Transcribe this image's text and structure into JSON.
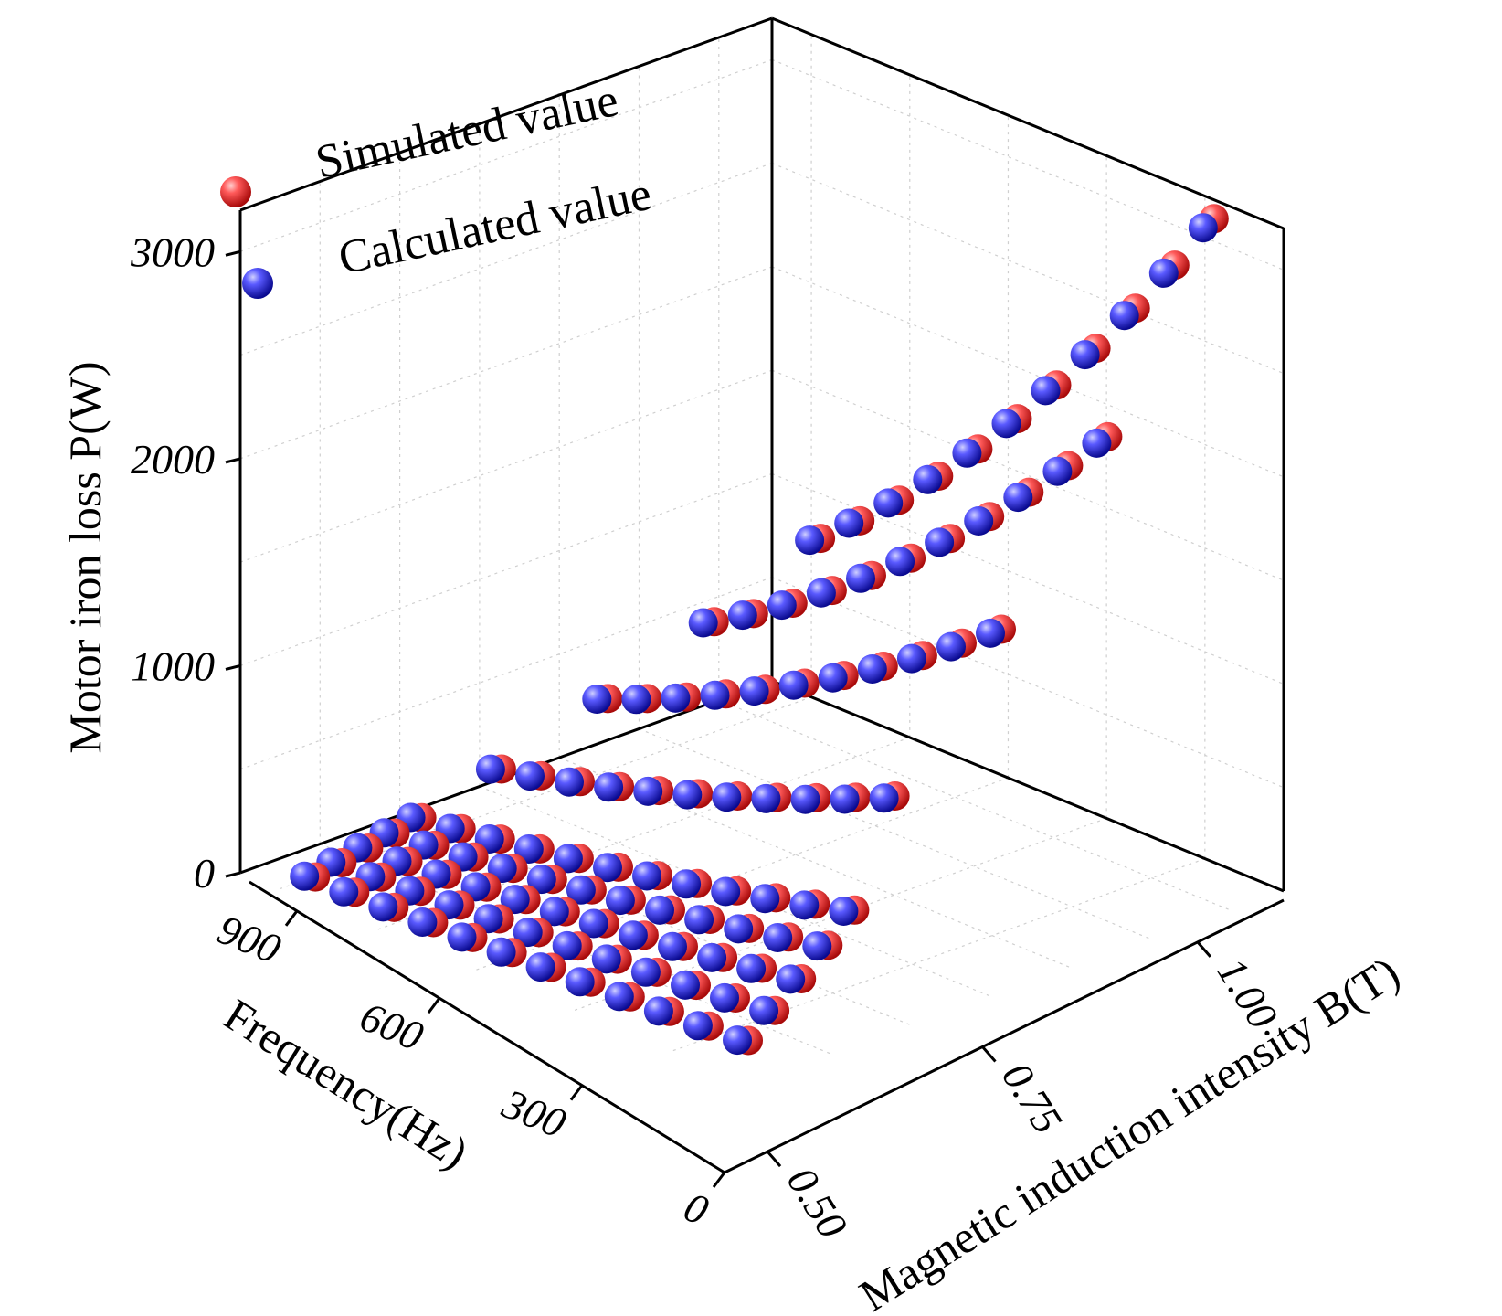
{
  "chart_data": {
    "type": "scatter3d",
    "title": "",
    "axes": {
      "z": {
        "label": "Motor iron loss P(W)",
        "range": [
          0,
          3200
        ],
        "ticks": [
          "0",
          "1000",
          "2000",
          "3000"
        ],
        "tick_values": [
          0,
          1000,
          2000,
          3000
        ]
      },
      "f": {
        "label": "Frequency(Hz)",
        "range": [
          0,
          1000
        ],
        "ticks": [
          "0",
          "300",
          "600",
          "900"
        ],
        "tick_values": [
          0,
          300,
          600,
          900
        ]
      },
      "b": {
        "label": "Magnetic induction intensity B(T)",
        "range": [
          0.45,
          1.1
        ],
        "ticks": [
          "0.50",
          "0.75",
          "1.00"
        ],
        "tick_values": [
          0.5,
          0.75,
          1.0
        ]
      }
    },
    "grid": true,
    "legend": {
      "position": "top-left"
    },
    "series": [
      {
        "name": "Simulated value",
        "color": "#e53030"
      },
      {
        "name": "Calculated value",
        "color": "#3030e0"
      }
    ],
    "model": {
      "description_points": "grid of B (T) x frequency (Hz) samples",
      "b_values": [
        0.5,
        0.55,
        0.6,
        0.65,
        0.7,
        0.75,
        0.8,
        0.85,
        0.9,
        0.95,
        1.0,
        1.05
      ],
      "dense_f_values": [
        50,
        100,
        150,
        200,
        250
      ],
      "sparse_f_values": [
        400,
        600,
        800,
        1000
      ]
    },
    "points": {
      "simulated_at_1000Hz": [
        {
          "b": 0.5,
          "p": 370
        },
        {
          "b": 0.55,
          "p": 620
        },
        {
          "b": 0.6,
          "p": 900
        },
        {
          "b": 0.65,
          "p": 1200
        },
        {
          "b": 0.7,
          "p": 1500
        },
        {
          "b": 0.75,
          "p": 1800
        },
        {
          "b": 0.8,
          "p": 2120
        },
        {
          "b": 0.85,
          "p": 2430
        },
        {
          "b": 0.9,
          "p": 2750
        },
        {
          "b": 0.95,
          "p": 3050
        },
        {
          "b": 1.0,
          "p": 3340
        }
      ]
    }
  },
  "legend": {
    "simulated_label": "Simulated value",
    "calculated_label": "Calculated value"
  },
  "colors": {
    "simulated": "#e53030",
    "calculated": "#3030e0"
  }
}
